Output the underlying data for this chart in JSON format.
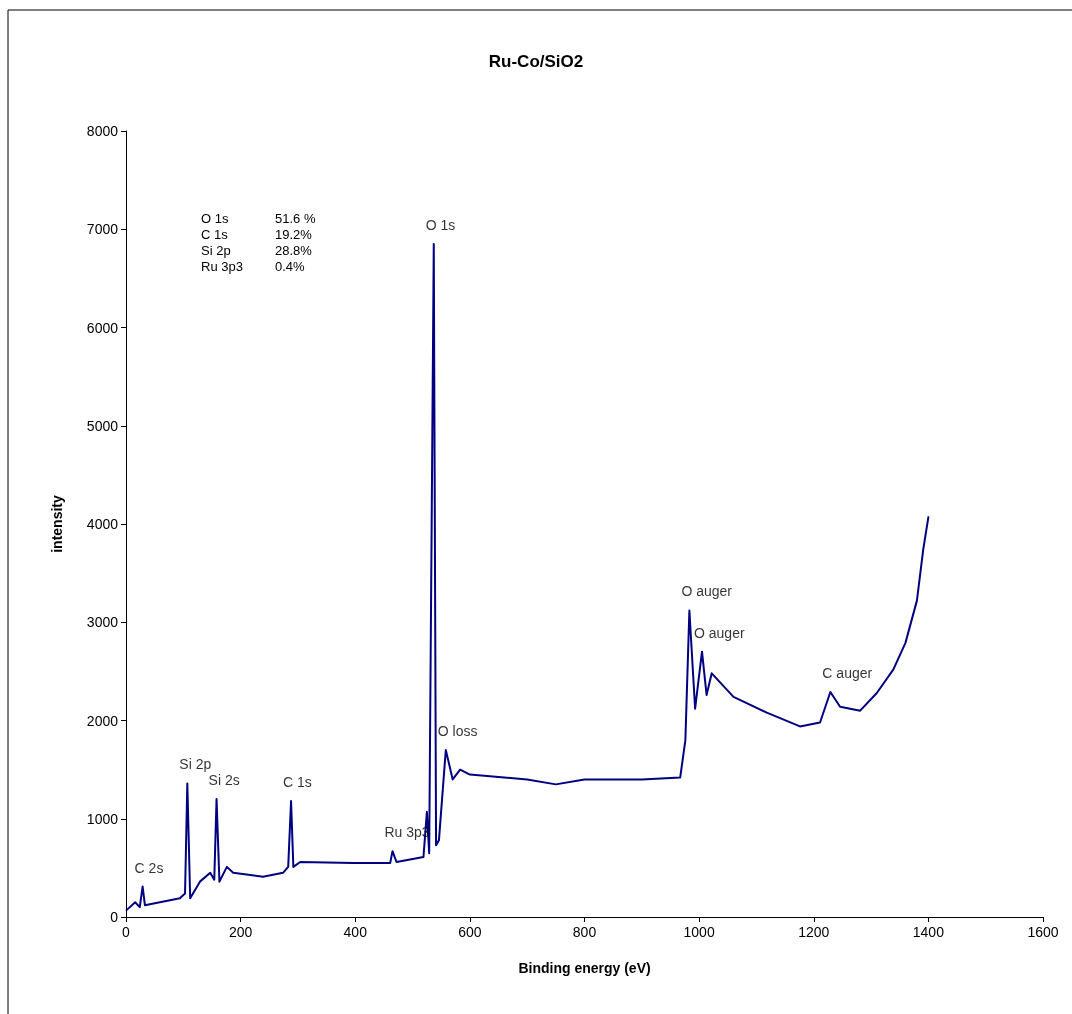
{
  "chart_data": {
    "type": "line",
    "title": "Ru-Co/SiO2",
    "xlabel": "Binding energy (eV)",
    "ylabel": "intensity",
    "xlim": [
      0,
      1600
    ],
    "xticks": [
      0,
      200,
      400,
      600,
      800,
      1000,
      1200,
      1400,
      1600
    ],
    "ylim": [
      0,
      8000
    ],
    "yticks": [
      0,
      1000,
      2000,
      3000,
      4000,
      5000,
      6000,
      7000,
      8000
    ],
    "grid": false,
    "marker": "none",
    "line_style": "solid",
    "series": [
      {
        "color": "#000080",
        "x": [
          1,
          16,
          24,
          29,
          33,
          94,
          103,
          107,
          112,
          129,
          147,
          154,
          158,
          163,
          176,
          187,
          239,
          274,
          283,
          288,
          292,
          304,
          397,
          461,
          465,
          472,
          519,
          525,
          529,
          537,
          541,
          546,
          558,
          570,
          583,
          600,
          700,
          750,
          800,
          900,
          967,
          976,
          983,
          993,
          1005,
          1013,
          1022,
          1060,
          1118,
          1176,
          1211,
          1229,
          1246,
          1281,
          1310,
          1339,
          1360,
          1380,
          1391,
          1400
        ],
        "values": [
          70,
          150,
          100,
          310,
          120,
          190,
          240,
          1360,
          190,
          360,
          450,
          380,
          1200,
          360,
          510,
          450,
          410,
          450,
          510,
          1180,
          510,
          560,
          550,
          550,
          670,
          560,
          610,
          1070,
          650,
          6850,
          730,
          780,
          1700,
          1400,
          1500,
          1450,
          1400,
          1350,
          1400,
          1400,
          1420,
          1800,
          3120,
          2120,
          2700,
          2260,
          2480,
          2240,
          2080,
          1940,
          1980,
          2290,
          2140,
          2100,
          2280,
          2520,
          2790,
          3220,
          3740,
          4070
        ]
      }
    ],
    "annotations": [
      {
        "text": "Si 2p",
        "x": 107,
        "y": 1360
      },
      {
        "text": "Si 2s",
        "x": 158,
        "y": 1200
      },
      {
        "text": "C 1s",
        "x": 288,
        "y": 1180
      },
      {
        "text": "C 2s",
        "x": 29,
        "y": 310
      },
      {
        "text": "Ru 3p3",
        "x": 465,
        "y": 670
      },
      {
        "text": "O 1s",
        "x": 537,
        "y": 6850
      },
      {
        "text": "O loss",
        "x": 558,
        "y": 1700
      },
      {
        "text": "O auger",
        "x": 983,
        "y": 3120
      },
      {
        "text": "O auger",
        "x": 1005,
        "y": 2700
      },
      {
        "text": "C auger",
        "x": 1229,
        "y": 2290
      },
      "O 1s      51.6 %",
      "C 1s      19.2%",
      "Si 2p      28.8%",
      "Ru 3p3      0.4%"
    ]
  }
}
